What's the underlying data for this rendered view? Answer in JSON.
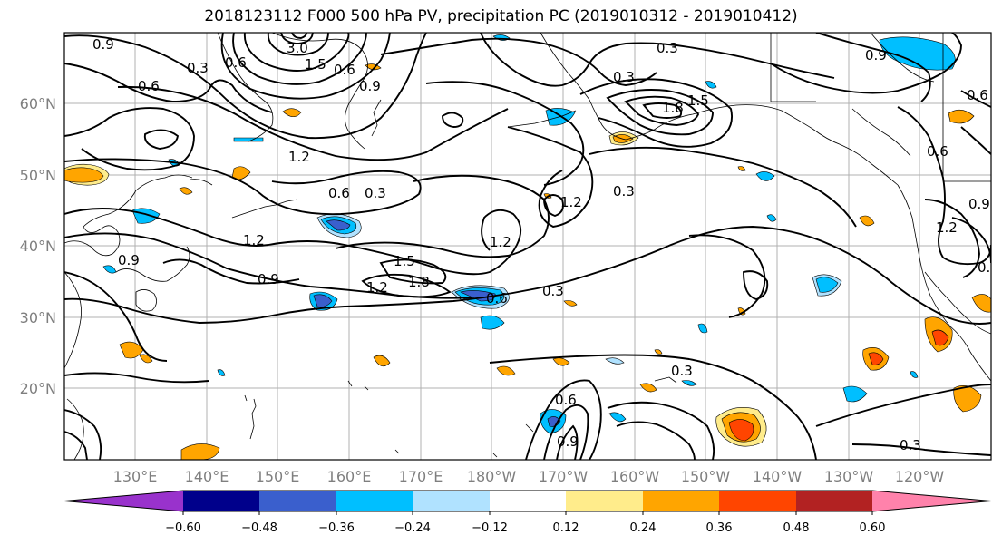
{
  "title": "2018123112 F000 500 hPa PV, precipitation PC (2019010312 - 2019010412)",
  "map": {
    "lon_labels": [
      "130°E",
      "140°E",
      "150°E",
      "160°E",
      "170°E",
      "180°W",
      "170°W",
      "160°W",
      "150°W",
      "140°W",
      "130°W",
      "120°W"
    ],
    "lat_labels": [
      "60°N",
      "50°N",
      "40°N",
      "30°N",
      "20°N"
    ],
    "contour_labels": [
      "0.9",
      "0.3",
      "0.6",
      "0.6",
      "3.0",
      "1.5",
      "0.6",
      "0.9",
      "0.3",
      "0.3",
      "1.8",
      "1.5",
      "1.2",
      "0.6",
      "0.3",
      "0.3",
      "1.2",
      "1.2",
      "1.2",
      "0.9",
      "1.5",
      "1.2",
      "1.8",
      "0.6",
      "0.3",
      "0.3",
      "0.6",
      "0.9",
      "0.9",
      "0.3",
      "0.6",
      "0.9",
      "1.2",
      "0.3",
      "0.9",
      "0.6"
    ]
  },
  "colorbar": {
    "colors": [
      "#9932cc",
      "#00008b",
      "#3a5fcd",
      "#00bfff",
      "#b0e2ff",
      "#ffffff",
      "#ffec8b",
      "#ffa500",
      "#ff4500",
      "#b22222",
      "#ff82ab"
    ],
    "tick_labels": [
      "−0.60",
      "−0.48",
      "−0.36",
      "−0.24",
      "−0.12",
      "0.12",
      "0.24",
      "0.36",
      "0.48",
      "0.60"
    ]
  }
}
